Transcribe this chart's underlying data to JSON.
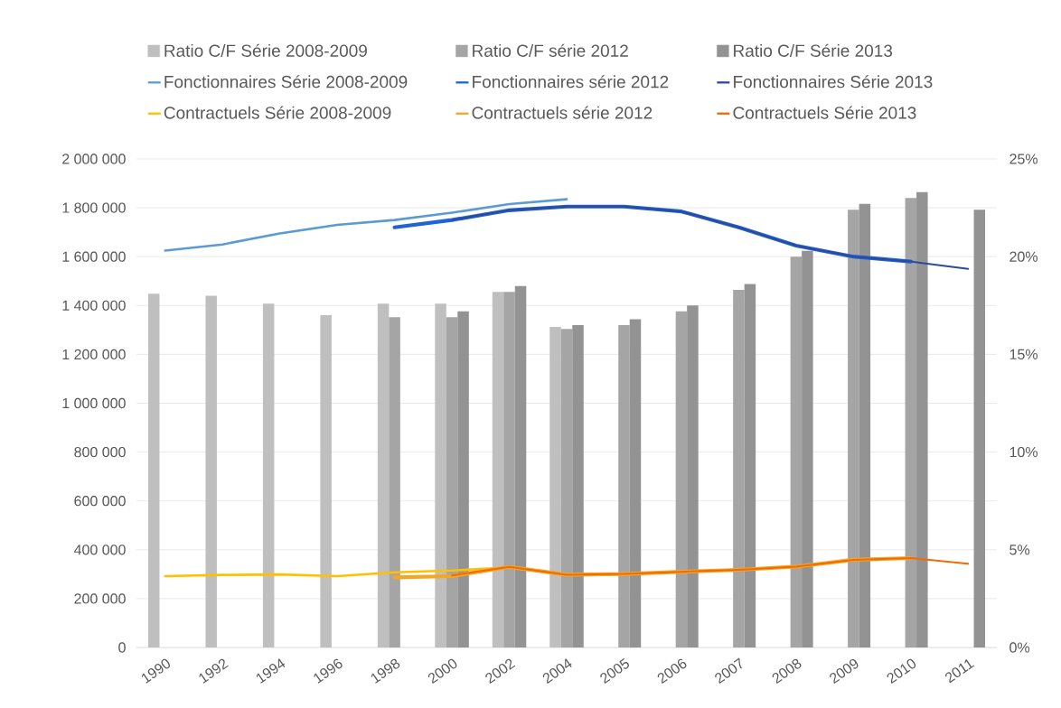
{
  "chart_data": {
    "type": "bar",
    "categories": [
      "1990",
      "1992",
      "1994",
      "1996",
      "1998",
      "2000",
      "2002",
      "2004",
      "2005",
      "2006",
      "2007",
      "2008",
      "2009",
      "2010",
      "2011"
    ],
    "series": [
      {
        "name": "Ratio C/F Série 2008-2009",
        "axis": "y2",
        "color": "#bfbfbf",
        "values": [
          18.1,
          18.0,
          17.6,
          17.0,
          17.6,
          17.6,
          18.2,
          16.4,
          null,
          null,
          null,
          null,
          null,
          null,
          null
        ]
      },
      {
        "name": "Ratio C/F série 2012",
        "axis": "y2",
        "color": "#a5a5a5",
        "values": [
          null,
          null,
          null,
          null,
          16.9,
          16.9,
          18.2,
          16.3,
          16.5,
          17.2,
          18.3,
          20.0,
          22.4,
          23.0,
          null
        ]
      },
      {
        "name": "Ratio C/F Série 2013",
        "axis": "y2",
        "color": "#939393",
        "values": [
          null,
          null,
          null,
          null,
          null,
          17.2,
          18.5,
          16.5,
          16.8,
          17.5,
          18.6,
          20.3,
          22.7,
          23.3,
          22.4
        ]
      },
      {
        "name": "Fonctionnaires Série 2008-2009",
        "type": "line",
        "color": "#5b9bd5",
        "values": [
          1625000,
          1650000,
          1695000,
          1730000,
          1750000,
          1780000,
          1815000,
          1835000,
          null,
          null,
          null,
          null,
          null,
          null,
          null
        ]
      },
      {
        "name": "Fonctionnaires série 2012",
        "type": "line",
        "color": "#1f63d8",
        "values": [
          null,
          null,
          null,
          null,
          1720000,
          1750000,
          1790000,
          1805000,
          1805000,
          1785000,
          1720000,
          1645000,
          1600000,
          1580000,
          null
        ]
      },
      {
        "name": "Fonctionnaires Série 2013",
        "type": "line",
        "color": "#2e4a96",
        "values": [
          null,
          null,
          null,
          null,
          null,
          1750000,
          1790000,
          1805000,
          1805000,
          1785000,
          1720000,
          1645000,
          1600000,
          1580000,
          1550000
        ]
      },
      {
        "name": "Contractuels Série 2008-2009",
        "type": "line",
        "color": "#ffc000",
        "values": [
          292000,
          297000,
          299000,
          292000,
          308000,
          315000,
          328000,
          296000,
          null,
          null,
          null,
          null,
          null,
          null,
          null
        ]
      },
      {
        "name": "Contractuels série 2012",
        "type": "line",
        "color": "#f5a623",
        "values": [
          null,
          null,
          null,
          null,
          287000,
          292000,
          330000,
          298000,
          301000,
          310000,
          318000,
          331000,
          359000,
          366000,
          null
        ]
      },
      {
        "name": "Contractuels Série 2013",
        "type": "line",
        "color": "#f26b00",
        "values": [
          null,
          null,
          null,
          null,
          null,
          295000,
          330000,
          298000,
          301000,
          310000,
          318000,
          331000,
          359000,
          366000,
          343000
        ]
      }
    ],
    "ylim": [
      0,
      2000000
    ],
    "yticks": [
      {
        "value": 0,
        "label": "0"
      },
      {
        "value": 200000,
        "label": "200 000"
      },
      {
        "value": 400000,
        "label": "400 000"
      },
      {
        "value": 600000,
        "label": "600 000"
      },
      {
        "value": 800000,
        "label": "800 000"
      },
      {
        "value": 1000000,
        "label": "1 000 000"
      },
      {
        "value": 1200000,
        "label": "1 200 000"
      },
      {
        "value": 1400000,
        "label": "1 400 000"
      },
      {
        "value": 1600000,
        "label": "1 600 000"
      },
      {
        "value": 1800000,
        "label": "1 800 000"
      },
      {
        "value": 2000000,
        "label": "2 000 000"
      }
    ],
    "y2lim": [
      0,
      25
    ],
    "y2ticks": [
      {
        "value": 0,
        "label": "0%"
      },
      {
        "value": 5,
        "label": "5%"
      },
      {
        "value": 10,
        "label": "10%"
      },
      {
        "value": 15,
        "label": "15%"
      },
      {
        "value": 20,
        "label": "20%"
      },
      {
        "value": 25,
        "label": "25%"
      }
    ],
    "grid": "y",
    "legend": "top"
  }
}
